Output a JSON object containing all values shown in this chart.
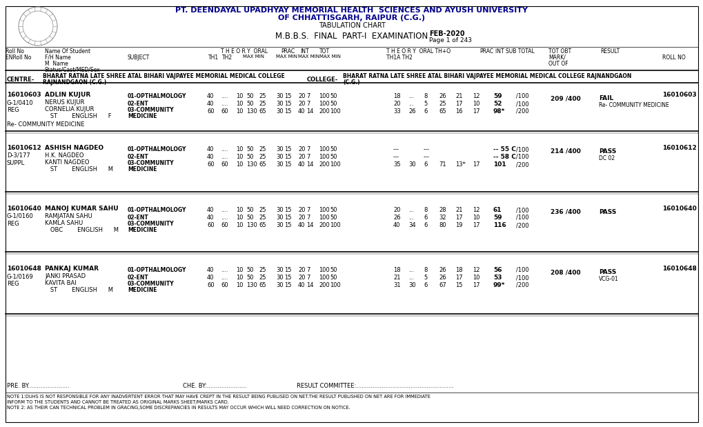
{
  "title_line1": "PT. DEENDAYAL UPADHYAY MEMORIAL HEALTH  SCIENCES AND AYUSH UNIVERSITY",
  "title_line2": "OF CHHATTISGARH, RAIPUR (C.G.)",
  "title_line3": "TABULATION CHART",
  "title_line4": "M.B.B.S.  FINAL  PART-I  EXAMINATION",
  "date_label": "FEB-2020",
  "page_label": "Page 1 of 243",
  "students": [
    {
      "roll_no": "16010603",
      "enroll_no": "G-1/0410",
      "reg": "REG",
      "cast": "ST",
      "med": "ENGLISH",
      "sex": "F",
      "name": "ADLIN KUJUR",
      "fh_name": "NERUS KUJUR",
      "m_name": "CORNELIA KUJUR",
      "subjects": [
        {
          "code": "01-OPTHALMOLOGY",
          "code2": null,
          "th1": "40",
          "th2": "....",
          "th2b": "10",
          "smx": "50",
          "smn": "25",
          "pmx": "30",
          "pmn": "15",
          "imx": "20",
          "imn": "7",
          "tmx": "100",
          "tmn": "50",
          "th1a": "18",
          "th2a": "...",
          "tho": "8",
          "prac2": "26",
          "int2": "21",
          "sub2": "12",
          "total": "59",
          "outof": "/100"
        },
        {
          "code": "02-ENT",
          "code2": null,
          "th1": "40",
          "th2": "....",
          "th2b": "10",
          "smx": "50",
          "smn": "25",
          "pmx": "30",
          "pmn": "15",
          "imx": "20",
          "imn": "7",
          "tmx": "100",
          "tmn": "50",
          "th1a": "20",
          "th2a": "...",
          "tho": "5",
          "prac2": "25",
          "int2": "17",
          "sub2": "10",
          "total": "52",
          "outof": "/100"
        },
        {
          "code": "03-COMMUNITY",
          "code2": "MEDICINE",
          "th1": "60",
          "th2": "60",
          "th2b": "10",
          "smx": "130",
          "smn": "65",
          "pmx": "30",
          "pmn": "15",
          "imx": "40",
          "imn": "14",
          "tmx": "200",
          "tmn": "100",
          "th1a": "33",
          "th2a": "26",
          "tho": "6",
          "prac2": "65",
          "int2": "16",
          "sub2": "17",
          "total": "98*",
          "outof": "/200"
        }
      ],
      "total_marks": "209 /400",
      "result": "FAIL",
      "result_detail": "Re- COMMUNITY MEDICINE",
      "show_re": true,
      "roll_no_out": "16010603"
    },
    {
      "roll_no": "16010612",
      "enroll_no": "D-3/177",
      "reg": "SUPPL",
      "cast": "ST",
      "med": "ENGLISH",
      "sex": "M",
      "name": "ASHISH NAGDEO",
      "fh_name": "H.K. NAGDEO",
      "m_name": "KANTI NAGDEO",
      "subjects": [
        {
          "code": "01-OPTHALMOLOGY",
          "code2": null,
          "th1": "40",
          "th2": "....",
          "th2b": "10",
          "smx": "50",
          "smn": "25",
          "pmx": "30",
          "pmn": "15",
          "imx": "20",
          "imn": "7",
          "tmx": "100",
          "tmn": "50",
          "th1a": "---",
          "th2a": "",
          "tho": "---",
          "prac2": "",
          "int2": "",
          "sub2": "",
          "total": "-- 55 C",
          "outof": "/100"
        },
        {
          "code": "02-ENT",
          "code2": null,
          "th1": "40",
          "th2": "....",
          "th2b": "10",
          "smx": "50",
          "smn": "25",
          "pmx": "30",
          "pmn": "15",
          "imx": "20",
          "imn": "7",
          "tmx": "100",
          "tmn": "50",
          "th1a": "---",
          "th2a": "",
          "tho": "---",
          "prac2": "",
          "int2": "",
          "sub2": "",
          "total": "-- 58 C",
          "outof": "/100"
        },
        {
          "code": "03-COMMUNITY",
          "code2": "MEDICINE",
          "th1": "60",
          "th2": "60",
          "th2b": "10",
          "smx": "130",
          "smn": "65",
          "pmx": "30",
          "pmn": "15",
          "imx": "40",
          "imn": "14",
          "tmx": "200",
          "tmn": "100",
          "th1a": "35",
          "th2a": "30",
          "tho": "6",
          "prac2": "71",
          "int2": "13*",
          "sub2": "17",
          "total": "101",
          "outof": "/200"
        }
      ],
      "total_marks": "214 /400",
      "result": "PASS",
      "result_detail": "DC 02",
      "show_re": false,
      "roll_no_out": "16010612"
    },
    {
      "roll_no": "16010640",
      "enroll_no": "G-1/0160",
      "reg": "REG",
      "cast": "OBC",
      "med": "ENGLISH",
      "sex": "M",
      "name": "MANOJ KUMAR SAHU",
      "fh_name": "RAMJATAN SAHU",
      "m_name": "KAMLA SAHU",
      "subjects": [
        {
          "code": "01-OPTHALMOLOGY",
          "code2": null,
          "th1": "40",
          "th2": "....",
          "th2b": "10",
          "smx": "50",
          "smn": "25",
          "pmx": "30",
          "pmn": "15",
          "imx": "20",
          "imn": "7",
          "tmx": "100",
          "tmn": "50",
          "th1a": "20",
          "th2a": "...",
          "tho": "8",
          "prac2": "28",
          "int2": "21",
          "sub2": "12",
          "total": "61",
          "outof": "/100"
        },
        {
          "code": "02-ENT",
          "code2": null,
          "th1": "40",
          "th2": "....",
          "th2b": "10",
          "smx": "50",
          "smn": "25",
          "pmx": "30",
          "pmn": "15",
          "imx": "20",
          "imn": "7",
          "tmx": "100",
          "tmn": "50",
          "th1a": "26",
          "th2a": "...",
          "tho": "6",
          "prac2": "32",
          "int2": "17",
          "sub2": "10",
          "total": "59",
          "outof": "/100"
        },
        {
          "code": "03-COMMUNITY",
          "code2": "MEDICINE",
          "th1": "60",
          "th2": "60",
          "th2b": "10",
          "smx": "130",
          "smn": "65",
          "pmx": "30",
          "pmn": "15",
          "imx": "40",
          "imn": "14",
          "tmx": "200",
          "tmn": "100",
          "th1a": "40",
          "th2a": "34",
          "tho": "6",
          "prac2": "80",
          "int2": "19",
          "sub2": "17",
          "total": "116",
          "outof": "/200"
        }
      ],
      "total_marks": "236 /400",
      "result": "PASS",
      "result_detail": "",
      "show_re": false,
      "roll_no_out": "16010640"
    },
    {
      "roll_no": "16010648",
      "enroll_no": "G-1/0169",
      "reg": "REG",
      "cast": "ST",
      "med": "ENGLISH",
      "sex": "M",
      "name": "PANKAJ KUMAR",
      "fh_name": "JANKI PRASAD",
      "m_name": "KAVITA BAI",
      "subjects": [
        {
          "code": "01-OPTHALMOLOGY",
          "code2": null,
          "th1": "40",
          "th2": "....",
          "th2b": "10",
          "smx": "50",
          "smn": "25",
          "pmx": "30",
          "pmn": "15",
          "imx": "20",
          "imn": "7",
          "tmx": "100",
          "tmn": "50",
          "th1a": "18",
          "th2a": "...",
          "tho": "8",
          "prac2": "26",
          "int2": "18",
          "sub2": "12",
          "total": "56",
          "outof": "/100"
        },
        {
          "code": "02-ENT",
          "code2": null,
          "th1": "40",
          "th2": "....",
          "th2b": "10",
          "smx": "50",
          "smn": "25",
          "pmx": "30",
          "pmn": "15",
          "imx": "20",
          "imn": "7",
          "tmx": "100",
          "tmn": "50",
          "th1a": "21",
          "th2a": "...",
          "tho": "5",
          "prac2": "26",
          "int2": "17",
          "sub2": "10",
          "total": "53",
          "outof": "/100"
        },
        {
          "code": "03-COMMUNITY",
          "code2": "MEDICINE",
          "th1": "60",
          "th2": "60",
          "th2b": "10",
          "smx": "130",
          "smn": "65",
          "pmx": "30",
          "pmn": "15",
          "imx": "40",
          "imn": "14",
          "tmx": "200",
          "tmn": "100",
          "th1a": "31",
          "th2a": "30",
          "tho": "6",
          "prac2": "67",
          "int2": "15",
          "sub2": "17",
          "total": "99*",
          "outof": "/200"
        }
      ],
      "total_marks": "208 /400",
      "result": "PASS",
      "result_detail": "VCG-01",
      "show_re": false,
      "roll_no_out": "16010648"
    }
  ],
  "footer_pre": "PRE. BY.......................",
  "footer_che": "CHE. BY:......................",
  "footer_result": "RESULT COMMITTEE:......................................................",
  "note1": "NOTE 1:DUHS IS NOT RESPONSIBLE FOR ANY INADVERTENT ERROR THAT MAY HAVE CREPT IN THE RESULT BEING PUBLISED ON NET.THE RESULT PUBLISHED ON NET ARE FOR IMMEDIATE",
  "note2": "INFORM TO THE STUDENTS AND CANNOT BE TREATED AS ORIGINAL MARKS SHEET/MARKS CARD.",
  "note3": "NOTE 2: AS THEIR CAN TECHNICAL PROBLEM IN GRACING,SOME DISCREPANCIES IN RESULTS MAY OCCUR WHICH WILL NEED CORRECTION ON NOTICE.",
  "title_color": "#00008B",
  "bg_color": "#FFFFFF",
  "text_color": "#000000"
}
